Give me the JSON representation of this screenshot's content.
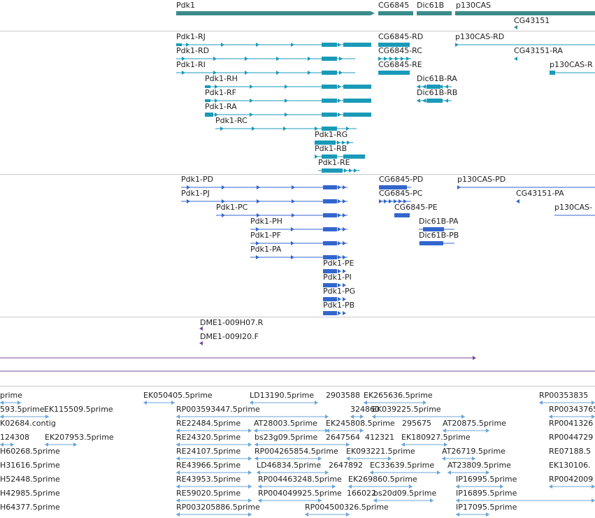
{
  "colors": {
    "gene": "#3a8c8a",
    "mrna": "#1a9ab8",
    "cds": "#3366cc",
    "oligo": "#7a4a9a",
    "est": "#6aa6d8",
    "separator": "#c8c8c8"
  },
  "tracks": {
    "genes": [
      "Pdk1",
      "CG6845",
      "Dic61B",
      "p130CAS",
      "CG43151"
    ],
    "mrnas": [
      "Pdk1-RJ",
      "Pdk1-RD",
      "Pdk1-RI",
      "Pdk1-RH",
      "Pdk1-RF",
      "Pdk1-RA",
      "Pdk1-RC",
      "Pdk1-RG",
      "Pdk1-RB",
      "Pdk1-RE",
      "CG6845-RD",
      "CG6845-RC",
      "CG6845-RE",
      "Dic61B-RA",
      "Dic61B-RB",
      "p130CAS-RD",
      "CG43151-RA",
      "p130CAS-R"
    ],
    "cds": [
      "Pdk1-PD",
      "Pdk1-PJ",
      "Pdk1-PC",
      "Pdk1-PH",
      "Pdk1-PF",
      "Pdk1-PA",
      "Pdk1-PE",
      "Pdk1-PI",
      "Pdk1-PG",
      "Pdk1-PB",
      "CG6845-PD",
      "CG6845-PC",
      "CG6845-PE",
      "Dic61B-PA",
      "Dic61B-PB",
      "p130CAS-PD",
      "CG43151-PA",
      "p130CAS-"
    ],
    "oligos": [
      "DME1-009H07.R",
      "DME1-009I20.F"
    ],
    "ests": [
      "prime",
      "EK050405.5prime",
      "LD13190.5prime",
      "2903588",
      "EK265636.5prime",
      "RP00353835",
      "593.5prime",
      "EK115509.5prime",
      "RP003593447.5prime",
      "324860",
      "EK039225.5prime",
      "RP00343765",
      "K02684.contig",
      "RE22484.5prime",
      "AT28003.5prime",
      "EK245808.5prime",
      "295675",
      "AT20875.5prime",
      "RP0041326",
      "124308",
      "EK207953.5prime",
      "RE24320.5prime",
      "bs23g09.5prime",
      "2647564",
      "412321",
      "EK180927.5prime",
      "RP0044729",
      "H60268.5prime",
      "RE24107.5prime",
      "RP004265854.5prime",
      "EK093221.5prime",
      "AT26719.5prime",
      "RE07188.5",
      "H31616.5prime",
      "RE43966.5prime",
      "LD46834.5prime",
      "2647892",
      "EC33639.5prime",
      "AT23809.5prime",
      "EK130106.",
      "H52448.5prime",
      "RE43953.5prime",
      "RP004463248.5prime",
      "EK269860.5prime",
      "IP16995.5prime",
      "RP0042009",
      "H42985.5prime",
      "RE59020.5prime",
      "RP004049925.5prime",
      "166022",
      "bs20d09.5prime",
      "IP16895.5prime",
      "H64377.5prime",
      "RP003205886.5prime",
      "RP004500326.5prime",
      "IP17095.5prime"
    ]
  }
}
